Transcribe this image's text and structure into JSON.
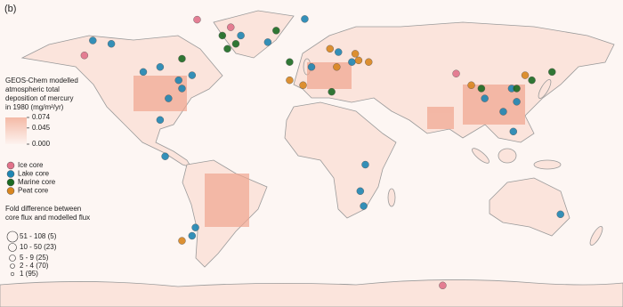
{
  "panel_label": "(b)",
  "colorbar": {
    "title_lines": [
      "GEOS-Chem modelled",
      "atmospheric total",
      "deposition of mercury",
      "in 1980 (mg/m²/yr)"
    ],
    "lim": [
      0,
      0.074
    ],
    "ticks": [
      0.074,
      0.045,
      {
        "value": 0,
        "label": "0.000"
      }
    ],
    "colors": [
      "#fdf3ef",
      "#f4b9a6"
    ]
  },
  "core_types": [
    {
      "name": "Ice core",
      "color": "#e2728a",
      "sites": [
        [
          -68,
          80.6
        ],
        [
          -135,
          59
        ],
        [
          86,
          48
        ],
        [
          78,
          -80
        ],
        [
          -48,
          76
        ]
      ]
    },
    {
      "name": "Lake core",
      "color": "#1f86b3",
      "sites": [
        [
          -130,
          68
        ],
        [
          -119,
          66
        ],
        [
          -100,
          49
        ],
        [
          -90,
          52
        ],
        [
          -79,
          44
        ],
        [
          -71,
          47
        ],
        [
          -85,
          33
        ],
        [
          -77,
          39
        ],
        [
          -90,
          20
        ],
        [
          -87,
          -2
        ],
        [
          -69,
          -45
        ],
        [
          -71,
          -50
        ],
        [
          0,
          52
        ],
        [
          16,
          61
        ],
        [
          24,
          55
        ],
        [
          32,
          -7
        ],
        [
          29,
          -23
        ],
        [
          31,
          -32
        ],
        [
          103,
          33
        ],
        [
          119,
          39
        ],
        [
          122,
          31
        ],
        [
          114,
          25
        ],
        [
          120,
          13
        ],
        [
          148,
          -37
        ],
        [
          -26,
          67
        ],
        [
          -4,
          81
        ],
        [
          -42,
          71
        ]
      ]
    },
    {
      "name": "Marine core",
      "color": "#1b6b22",
      "sites": [
        [
          -53,
          71
        ],
        [
          -45,
          66
        ],
        [
          -21,
          74
        ],
        [
          -50,
          63
        ],
        [
          122,
          39
        ],
        [
          131,
          44
        ],
        [
          143,
          49
        ],
        [
          101,
          39
        ],
        [
          -13,
          55
        ],
        [
          -77,
          57
        ],
        [
          12,
          37
        ]
      ]
    },
    {
      "name": "Peat core",
      "color": "#d9861f",
      "sites": [
        [
          -13,
          44
        ],
        [
          -5,
          41
        ],
        [
          11,
          63
        ],
        [
          15,
          52
        ],
        [
          28,
          56
        ],
        [
          34,
          55
        ],
        [
          26,
          60
        ],
        [
          -77,
          -53
        ],
        [
          127,
          47
        ],
        [
          95,
          41
        ]
      ]
    }
  ],
  "size_legend": {
    "title_lines": [
      "Fold difference between",
      "core flux and modelled flux"
    ],
    "classes": [
      "51 - 108 (5)",
      "10 - 50 (23)",
      "5 - 9 (25)",
      "2 - 4 (70)",
      "1 (95)"
    ]
  }
}
